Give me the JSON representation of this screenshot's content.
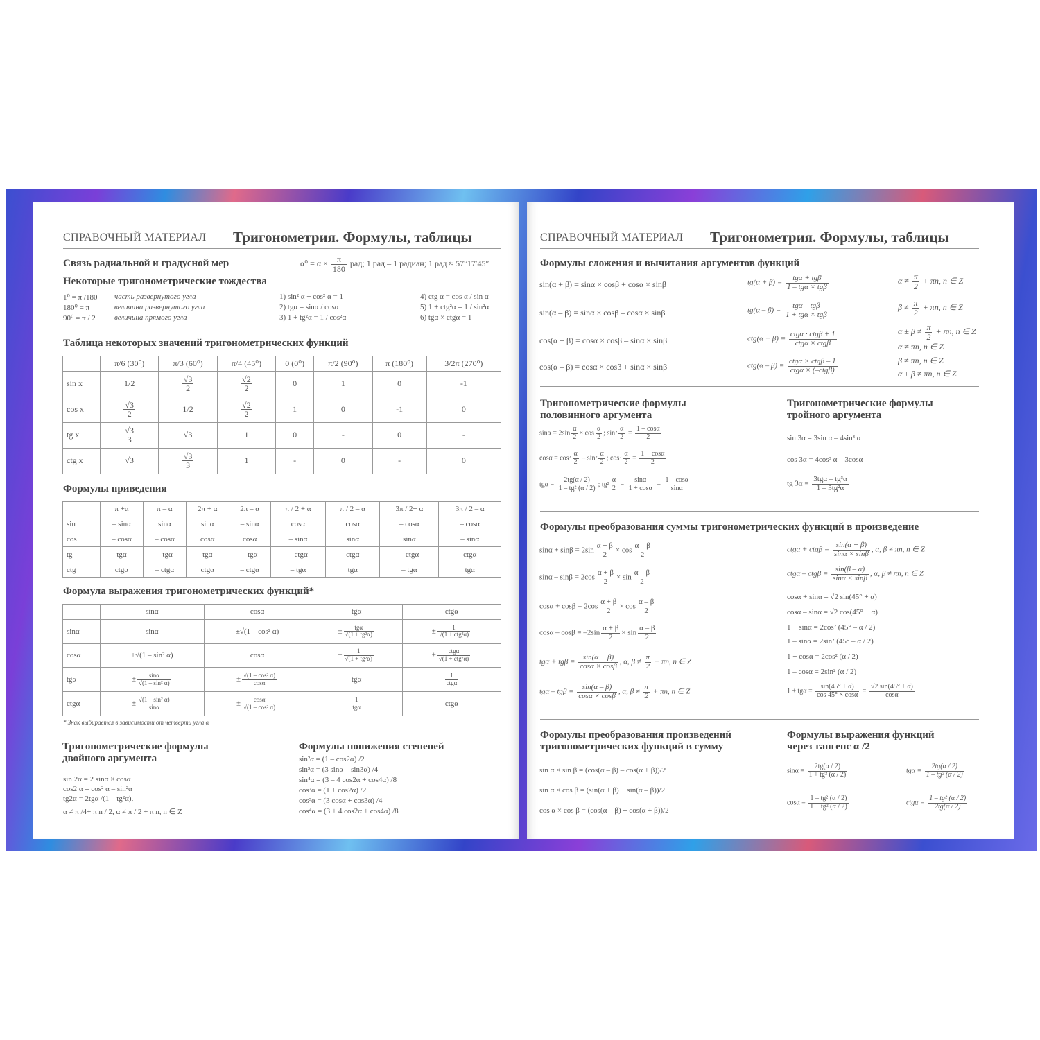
{
  "header": {
    "section": "СПРАВОЧНЫЙ МАТЕРИАЛ",
    "title": "Тригонометрия. Формулы, таблицы"
  },
  "colors": {
    "cover": [
      "#3b4fd0",
      "#7a3fd8",
      "#2f8de0",
      "#e06a8a"
    ],
    "text": "#555555",
    "rule": "#999999"
  },
  "left": {
    "radian": {
      "title": "Связь радиальной и градусной мер",
      "formula": [
        "α⁰ = α × ",
        {
          "n": "π",
          "d": "180"
        },
        " рад; 1 рад – 1 радиан; 1 рад ≈ 57°17′45″"
      ]
    },
    "identities": {
      "title": "Некоторые тригонометрические тождества",
      "degrees": [
        {
          "f": "1⁰ = π /180",
          "note": "часть развернутого угла"
        },
        {
          "f": "180⁰ = π",
          "note": "величина развернутого угла"
        },
        {
          "f": "90⁰ = π / 2",
          "note": "величина прямого угла"
        }
      ],
      "col2": [
        "1) sin² α + cos² α = 1",
        "2) tgα = sinα / cosα",
        "3) 1 + tg²α = 1 / cos²α"
      ],
      "col3": [
        "4) ctg α = cos α / sin α",
        "5) 1 + ctg²α = 1 / sin²α",
        "6) tgα × ctgα = 1"
      ]
    },
    "values_table": {
      "title": "Таблица некоторых значений тригонометрических функций",
      "headers": [
        "",
        "π/6 (30⁰)",
        "π/3 (60⁰)",
        "π/4 (45⁰)",
        "0 (0⁰)",
        "π/2 (90⁰)",
        "π (180⁰)",
        "3/2π (270⁰)"
      ],
      "rows": [
        [
          "sin x",
          "1/2",
          {
            "n": "√3",
            "d": "2"
          },
          {
            "n": "√2",
            "d": "2"
          },
          "0",
          "1",
          "0",
          "-1"
        ],
        [
          "cos x",
          {
            "n": "√3",
            "d": "2"
          },
          "1/2",
          {
            "n": "√2",
            "d": "2"
          },
          "1",
          "0",
          "-1",
          "0"
        ],
        [
          "tg x",
          {
            "n": "√3",
            "d": "3"
          },
          "√3",
          "1",
          "0",
          "-",
          "0",
          "-"
        ],
        [
          "ctg x",
          "√3",
          {
            "n": "√3",
            "d": "3"
          },
          "1",
          "-",
          "0",
          "-",
          "0"
        ]
      ]
    },
    "reduction_table": {
      "title": "Формулы приведения",
      "headers": [
        "",
        "π +α",
        "π – α",
        "2π + α",
        "2π – α",
        "π / 2 + α",
        "π / 2 – α",
        "3π / 2+ α",
        "3π / 2 – α"
      ],
      "rows": [
        [
          "sin",
          "– sinα",
          "sinα",
          "sinα",
          "– sinα",
          "cosα",
          "cosα",
          "– cosα",
          "– cosα"
        ],
        [
          "cos",
          "– cosα",
          "– cosα",
          "cosα",
          "cosα",
          "– sinα",
          "sinα",
          "sinα",
          "– sinα"
        ],
        [
          "tg",
          "tgα",
          "– tgα",
          "tgα",
          "– tgα",
          "– ctgα",
          "ctgα",
          "– ctgα",
          "ctgα"
        ],
        [
          "ctg",
          "ctgα",
          "– ctgα",
          "ctgα",
          "– ctgα",
          "– tgα",
          "tgα",
          "– tgα",
          "tgα"
        ]
      ]
    },
    "expression_table": {
      "title": "Формула выражения тригонометрических функций*",
      "headers": [
        "",
        "sinα",
        "cosα",
        "tgα",
        "ctgα"
      ],
      "rows": [
        [
          "sinα",
          "sinα",
          "±√(1 – cos² α)",
          [
            "±",
            {
              "n": "tgα",
              "d": "√(1 + tg²α)"
            }
          ],
          [
            "±",
            {
              "n": "1",
              "d": "√(1 + ctg²α)"
            }
          ]
        ],
        [
          "cosα",
          "±√(1 – sin² α)",
          "cosα",
          [
            "±",
            {
              "n": "1",
              "d": "√(1 + tg²α)"
            }
          ],
          [
            "±",
            {
              "n": "ctgα",
              "d": "√(1 + ctg²α)"
            }
          ]
        ],
        [
          "tgα",
          [
            "±",
            {
              "n": "sinα",
              "d": "√(1 – sin² α)"
            }
          ],
          [
            "±",
            {
              "n": "√(1 – cos² α)",
              "d": "cosα"
            }
          ],
          "tgα",
          [
            {
              "n": "1",
              "d": "ctgα"
            }
          ]
        ],
        [
          "ctgα",
          [
            "±",
            {
              "n": "√(1 – sin² α)",
              "d": "sinα"
            }
          ],
          [
            "±",
            {
              "n": "cosα",
              "d": "√(1 – cos² α)"
            }
          ],
          [
            {
              "n": "1",
              "d": "tgα"
            }
          ],
          "ctgα"
        ]
      ],
      "footnote": "* Знак выбирается в зависимости от четверти угла α"
    },
    "double": {
      "title1": "Тригонометрические формулы",
      "title2": "двойного аргумента",
      "items": [
        "sin 2α = 2 sinα × cosα",
        "cos2 α = cos² α – sin²α",
        "tg2α = 2tgα /(1 – tg²α),",
        "α ≠ π /4+ π n / 2, α ≠ π / 2 + π n, n ∈ Z"
      ]
    },
    "power": {
      "title": "Формулы понижения степеней",
      "items": [
        "sin²α = (1 – cos2α) /2",
        "sin³α = (3 sinα – sin3α) /4",
        "sin⁴α = (3 – 4 cos2α + cos4α) /8",
        "cos²α = (1 + cos2α) /2",
        "cos³α = (3 cosα + cos3α) /4",
        "cos⁴α = (3 + 4 cos2α + cos4α) /8"
      ]
    }
  },
  "right": {
    "addition": {
      "title": "Формулы сложения и вычитания аргументов функций",
      "col1": [
        "sin(α + β) = sinα × cosβ + cosα × sinβ",
        "sin(α – β) = sinα × cosβ – cosα × sinβ",
        "cos(α + β) = cosα × cosβ – sinα × sinβ",
        "cos(α – β) = cosα × cosβ + sinα × sinβ"
      ],
      "col2": [
        [
          "tg(α + β) = ",
          {
            "n": "tgα + tgβ",
            "d": "1 – tgα × tgβ"
          }
        ],
        [
          "tg(α – β) = ",
          {
            "n": "tgα – tgβ",
            "d": "1 + tgα × tgβ"
          }
        ],
        [
          "ctg(α + β) = ",
          {
            "n": "ctgα · ctgβ + 1",
            "d": "ctgα × ctgβ"
          }
        ],
        [
          "ctg(α – β) = ",
          {
            "n": "ctgα × ctgβ – 1",
            "d": "ctgα × (–ctgβ)"
          }
        ]
      ],
      "col3": [
        [
          "α ≠ ",
          {
            "n": "π",
            "d": "2"
          },
          " + πn, n ∈ Z"
        ],
        [
          "β ≠ ",
          {
            "n": "π",
            "d": "2"
          },
          " + πn, n ∈ Z"
        ],
        [
          "α ± β ≠ ",
          {
            "n": "π",
            "d": "2"
          },
          " + πn, n ∈ Z"
        ],
        "α ≠ πn, n ∈ Z",
        "β ≠ πn, n ∈ Z",
        "α ± β ≠ πn, n ∈ Z"
      ]
    },
    "half": {
      "title1": "Тригонометрические формулы",
      "title2": "половинного аргумента",
      "items": [
        [
          "sinα = 2sin",
          {
            "n": "α",
            "d": "2"
          },
          "× cos",
          {
            "n": "α",
            "d": "2"
          },
          "; sin²",
          {
            "n": "α",
            "d": "2"
          },
          " = ",
          {
            "n": "1 – cosα",
            "d": "2"
          }
        ],
        [
          "cosα = cos²",
          {
            "n": "α",
            "d": "2"
          },
          " – sin²",
          {
            "n": "α",
            "d": "2"
          },
          "; cos²",
          {
            "n": "α",
            "d": "2"
          },
          " = ",
          {
            "n": "1 + cosα",
            "d": "2"
          }
        ],
        [
          "tgα = ",
          {
            "n": "2tg(α / 2)",
            "d": "1 – tg² (α / 2)"
          },
          "; tg²",
          {
            "n": "α",
            "d": "2"
          },
          " = ",
          {
            "n": "sinα",
            "d": "1 + cosα"
          },
          " = ",
          {
            "n": "1 – cosα",
            "d": "sinα"
          }
        ]
      ]
    },
    "triple": {
      "title1": "Тригонометрические формулы",
      "title2": "тройного аргумента",
      "items": [
        "sin 3α = 3sin α – 4sin³ α",
        "cos 3α = 4cos³ α – 3cosα",
        [
          "tg 3α = ",
          {
            "n": "3tgα – tg³α",
            "d": "1 – 3tg²α"
          }
        ]
      ]
    },
    "sum_product": {
      "title": "Формулы преобразования суммы тригонометрических функций в произведение",
      "left": [
        [
          "sinα + sinβ = 2sin",
          {
            "n": "α + β",
            "d": "2"
          },
          "× cos",
          {
            "n": "α – β",
            "d": "2"
          }
        ],
        [
          "sinα – sinβ = 2cos",
          {
            "n": "α + β",
            "d": "2"
          },
          "× sin",
          {
            "n": "α – β",
            "d": "2"
          }
        ],
        [
          "cosα + cosβ = 2cos",
          {
            "n": "α + β",
            "d": "2"
          },
          "× cos",
          {
            "n": "α – β",
            "d": "2"
          }
        ],
        [
          "cosα – cosβ = –2sin",
          {
            "n": "α + β",
            "d": "2"
          },
          "× sin",
          {
            "n": "α – β",
            "d": "2"
          }
        ],
        [
          "tgα + tgβ = ",
          {
            "n": "sin(α + β)",
            "d": "cosα × cosβ"
          },
          ", α, β ≠ ",
          {
            "n": "π",
            "d": "2"
          },
          " + πn, n ∈ Z"
        ],
        [
          "tgα – tgβ = ",
          {
            "n": "sin(α – β)",
            "d": "cosα × cosβ"
          },
          ", α, β ≠ ",
          {
            "n": "π",
            "d": "2"
          },
          " + πn, n ∈ Z"
        ]
      ],
      "right": [
        [
          "ctgα + ctgβ = ",
          {
            "n": "sin(α + β)",
            "d": "sinα × sinβ"
          },
          ", α, β ≠ πn, n ∈ Z"
        ],
        [
          "ctgα – ctgβ = ",
          {
            "n": "sin(β – α)",
            "d": "sinα × sinβ"
          },
          ", α, β ≠ πn, n ∈ Z"
        ],
        "cosα + sinα = √2 sin(45° + α)",
        "cosα – sinα = √2 cos(45° + α)",
        "1 + sinα = 2cos² (45° – α / 2)",
        "1 – sinα = 2sin² (45° – α / 2)",
        "1 + cosα = 2cos² (α / 2)",
        "1 – cosα = 2sin² (α / 2)",
        [
          "1 ± tgα = ",
          {
            "n": "sin(45° ± α)",
            "d": "cos 45° × cosα"
          },
          " = ",
          {
            "n": "√2 sin(45° ± α)",
            "d": "cosα"
          }
        ]
      ]
    },
    "product_sum": {
      "title1": "Формулы преобразования произведений",
      "title2": "тригонометрических функций в сумму",
      "items": [
        "sin α × sin β = (cos(α – β) – cos(α + β))/2",
        "sin α × cos β = (sin(α + β) + sin(α – β))/2",
        "cos α × cos β = (cos(α – β) + cos(α + β))/2"
      ]
    },
    "tan_half": {
      "title1": "Формулы выражения функций",
      "title2": "через тангенс α /2",
      "items": [
        [
          "sinα = ",
          {
            "n": "2tg(α / 2)",
            "d": "1 + tg² (α / 2)"
          }
        ],
        [
          "tgα = ",
          {
            "n": "2tg(α / 2)",
            "d": "1 – tg² (α / 2)"
          }
        ],
        [
          "cosα = ",
          {
            "n": "1 – tg² (α / 2)",
            "d": "1 + tg² (α / 2)"
          }
        ],
        [
          "ctgα = ",
          {
            "n": "1 – tg² (α / 2)",
            "d": "2tg(α / 2)"
          }
        ]
      ]
    }
  }
}
